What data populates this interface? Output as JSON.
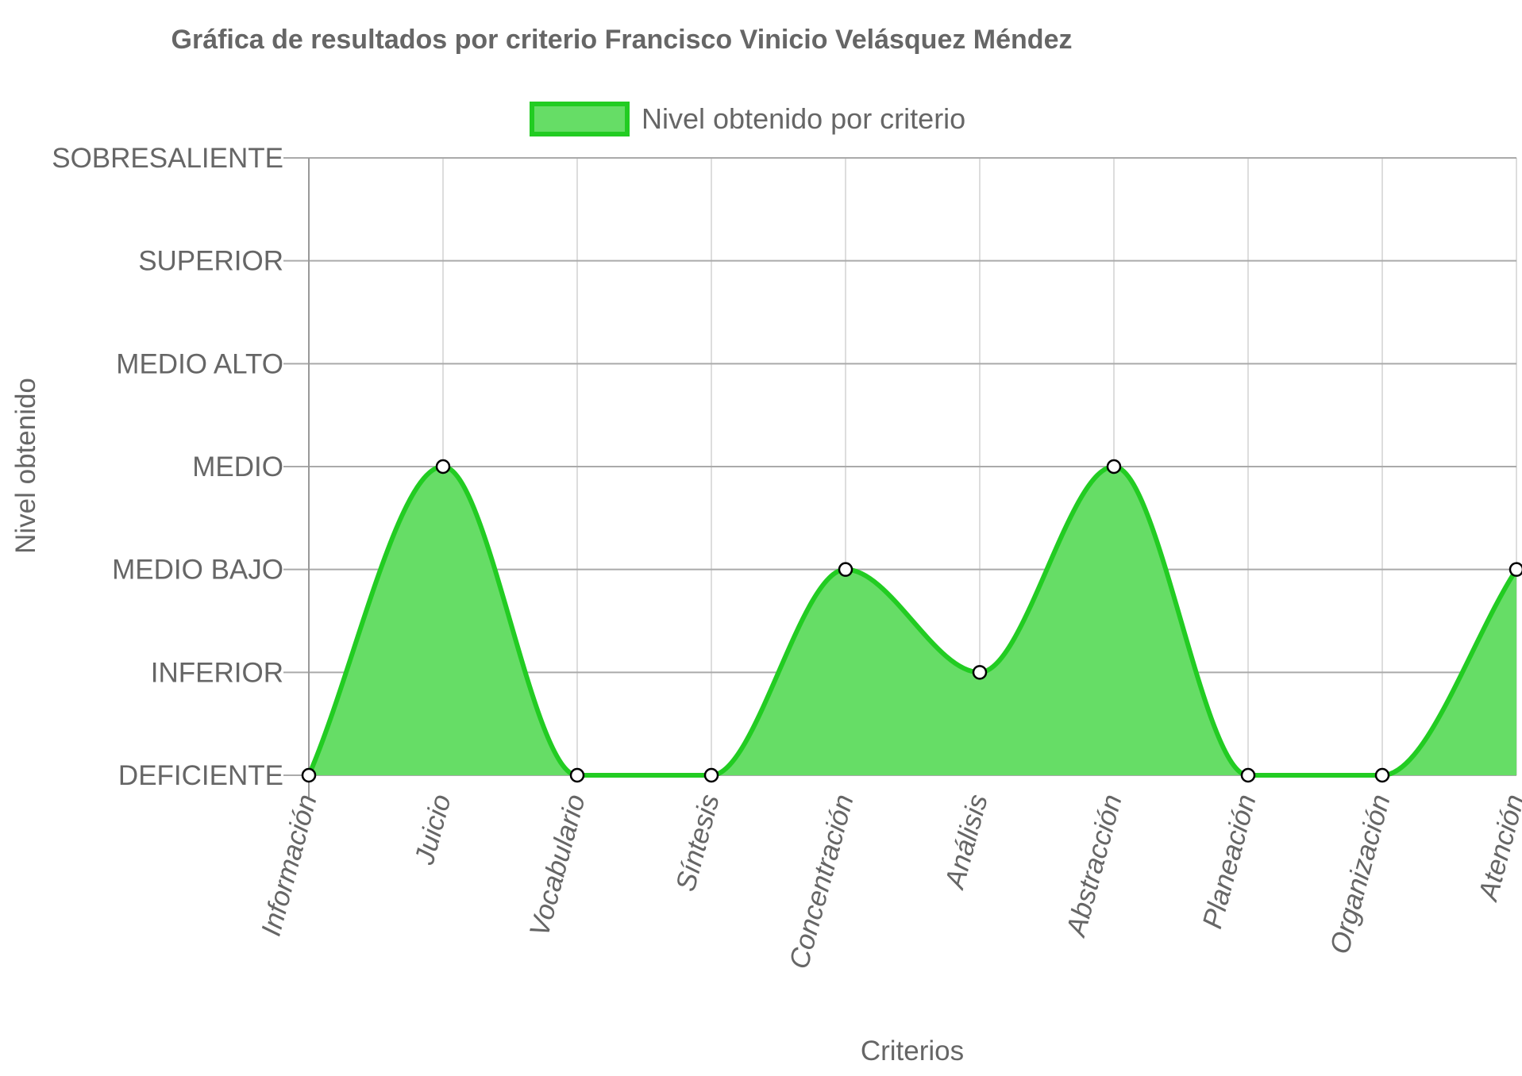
{
  "chart_data": {
    "type": "area",
    "title": "Gráfica de resultados por criterio Francisco Vinicio Velásquez Méndez",
    "xlabel": "Criterios",
    "ylabel": "Nivel obtenido",
    "categories": [
      "Información",
      "Juicio",
      "Vocabulario",
      "Síntesis",
      "Concentración",
      "Análisis",
      "Abstracción",
      "Planeación",
      "Organización",
      "Atención"
    ],
    "y_levels": [
      "DEFICIENTE",
      "INFERIOR",
      "MEDIO BAJO",
      "MEDIO",
      "MEDIO ALTO",
      "SUPERIOR",
      "SOBRESALIENTE"
    ],
    "ylim": [
      0,
      6
    ],
    "grid": true,
    "legend_position": "top",
    "series": [
      {
        "name": "Nivel obtenido por criterio",
        "values": [
          0,
          3,
          0,
          0,
          2,
          1,
          3,
          0,
          0,
          2
        ],
        "values_labels": [
          "DEFICIENTE",
          "MEDIO",
          "DEFICIENTE",
          "DEFICIENTE",
          "MEDIO BAJO",
          "INFERIOR",
          "MEDIO",
          "DEFICIENTE",
          "DEFICIENTE",
          "MEDIO BAJO"
        ],
        "line_color": "#22cc22",
        "fill_color": "#66dd66"
      }
    ]
  }
}
